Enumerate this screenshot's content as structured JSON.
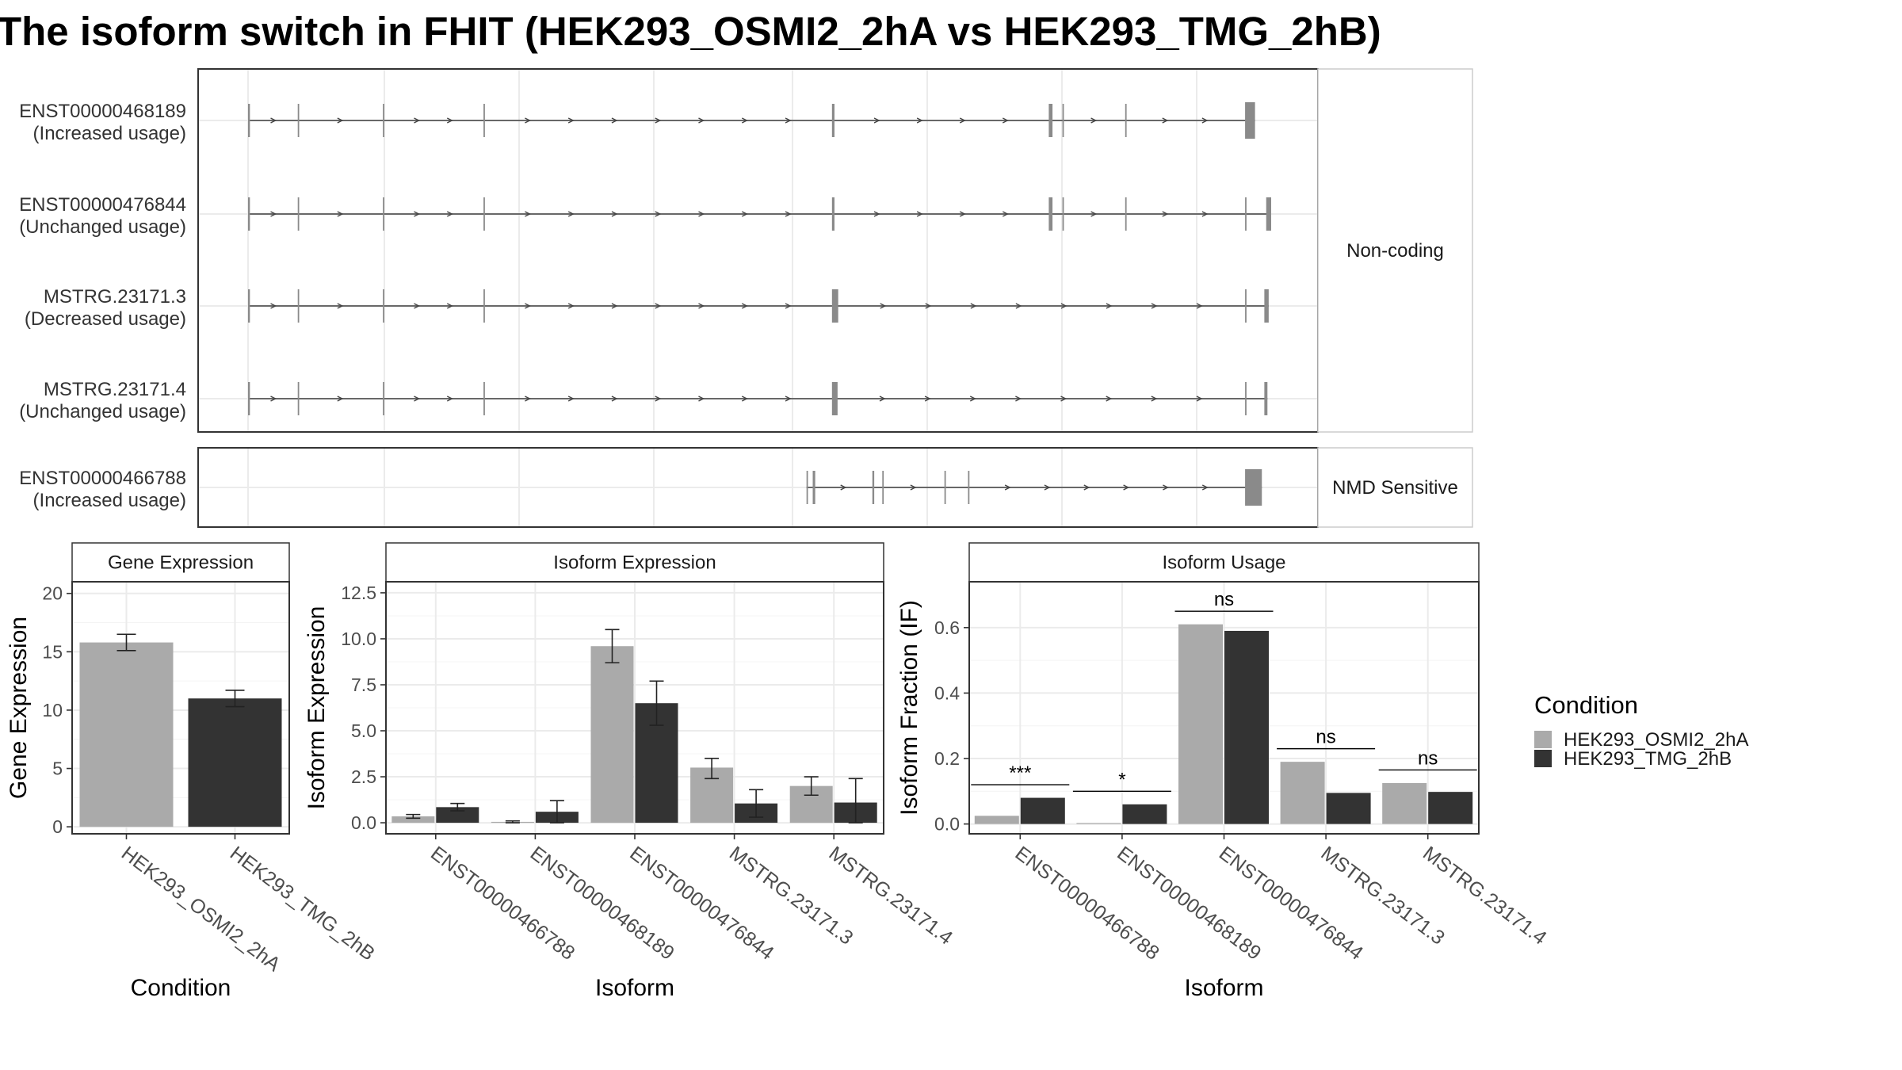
{
  "title": "The isoform switch in FHIT (HEK293_OSMI2_2hA vs HEK293_TMG_2hB)",
  "transcripts": [
    {
      "id": "ENST00000468189",
      "usage": "(Increased usage)",
      "group": "Non-coding",
      "exons": [
        [
          1001,
          1004
        ],
        [
          1081,
          1082
        ],
        [
          1218,
          1220
        ],
        [
          1380,
          1382
        ],
        [
          1941,
          1945
        ],
        [
          2290,
          2296
        ],
        [
          2312,
          2313
        ],
        [
          2413,
          2414
        ],
        [
          2606,
          2622
        ]
      ]
    },
    {
      "id": "ENST00000476844",
      "usage": "(Unchanged usage)",
      "group": "Non-coding",
      "exons": [
        [
          1001,
          1004
        ],
        [
          1081,
          1082
        ],
        [
          1218,
          1220
        ],
        [
          1380,
          1382
        ],
        [
          1941,
          1945
        ],
        [
          2290,
          2296
        ],
        [
          2312,
          2313
        ],
        [
          2413,
          2414
        ],
        [
          2606,
          2607
        ],
        [
          2640,
          2648
        ]
      ]
    },
    {
      "id": "MSTRG.23171.3",
      "usage": "(Decreased usage)",
      "group": "Non-coding",
      "exons": [
        [
          1001,
          1004
        ],
        [
          1081,
          1082
        ],
        [
          1218,
          1220
        ],
        [
          1380,
          1382
        ],
        [
          1941,
          1951
        ],
        [
          2606,
          2608
        ],
        [
          2637,
          2644
        ]
      ]
    },
    {
      "id": "MSTRG.23171.4",
      "usage": "(Unchanged usage)",
      "group": "Non-coding",
      "exons": [
        [
          1001,
          1004
        ],
        [
          1081,
          1082
        ],
        [
          1218,
          1220
        ],
        [
          1380,
          1382
        ],
        [
          1941,
          1950
        ],
        [
          2606,
          2608
        ],
        [
          2637,
          2642
        ]
      ]
    },
    {
      "id": "ENST00000466788",
      "usage": "(Increased usage)",
      "group": "NMD Sensitive",
      "exons": [
        [
          1900,
          1902
        ],
        [
          1910,
          1914
        ],
        [
          2006,
          2009
        ],
        [
          2022,
          2023
        ],
        [
          2122,
          2123
        ],
        [
          2160,
          2161
        ],
        [
          2606,
          2633
        ]
      ]
    }
  ],
  "groups": [
    "Non-coding",
    "NMD Sensitive"
  ],
  "chart_data": [
    {
      "type": "bar",
      "title": "Gene Expression",
      "xlabel": "Condition",
      "ylabel": "Gene Expression",
      "ylim": [
        -0.6,
        21
      ],
      "yticks": [
        0,
        5,
        10,
        15,
        20
      ],
      "ytick_labels": [
        "0",
        "5",
        "10",
        "15",
        "20"
      ],
      "categories": [
        "HEK293_OSMI2_2hA",
        "HEK293_TMG_2hB"
      ],
      "values": [
        15.8,
        11.0
      ],
      "errors": [
        [
          15.1,
          16.5
        ],
        [
          10.3,
          11.7
        ]
      ],
      "bar_colors": [
        "#aaaaaa",
        "#333333"
      ]
    },
    {
      "type": "bar",
      "title": "Isoform Expression",
      "xlabel": "Isoform",
      "ylabel": "Isoform Expression",
      "ylim": [
        -0.6,
        13.1
      ],
      "yticks": [
        0,
        2.5,
        5,
        7.5,
        10,
        12.5
      ],
      "ytick_labels": [
        "0.0",
        "2.5",
        "5.0",
        "7.5",
        "10.0",
        "12.5"
      ],
      "categories": [
        "ENST00000466788",
        "ENST00000468189",
        "ENST00000476844",
        "MSTRG.23171.3",
        "MSTRG.23171.4"
      ],
      "series": [
        {
          "name": "HEK293_OSMI2_2hA",
          "color": "#aaaaaa",
          "values": [
            0.35,
            0.05,
            9.6,
            3.0,
            2.0
          ],
          "errors": [
            [
              0.25,
              0.45
            ],
            [
              0.0,
              0.1
            ],
            [
              8.7,
              10.5
            ],
            [
              2.4,
              3.5
            ],
            [
              1.5,
              2.5
            ]
          ]
        },
        {
          "name": "HEK293_TMG_2hB",
          "color": "#333333",
          "values": [
            0.85,
            0.6,
            6.5,
            1.05,
            1.1
          ],
          "errors": [
            [
              0.65,
              1.05
            ],
            [
              0.0,
              1.2
            ],
            [
              5.3,
              7.7
            ],
            [
              0.3,
              1.8
            ],
            [
              0.0,
              2.4
            ]
          ]
        }
      ]
    },
    {
      "type": "bar",
      "title": "Isoform Usage",
      "xlabel": "Isoform",
      "ylabel": "Isoform Fraction (IF)",
      "ylim": [
        -0.03,
        0.74
      ],
      "yticks": [
        0,
        0.2,
        0.4,
        0.6
      ],
      "ytick_labels": [
        "0.0",
        "0.2",
        "0.4",
        "0.6"
      ],
      "categories": [
        "ENST00000466788",
        "ENST00000468189",
        "ENST00000476844",
        "MSTRG.23171.3",
        "MSTRG.23171.4"
      ],
      "series": [
        {
          "name": "HEK293_OSMI2_2hA",
          "color": "#aaaaaa",
          "values": [
            0.025,
            0.003,
            0.61,
            0.19,
            0.125
          ]
        },
        {
          "name": "HEK293_TMG_2hB",
          "color": "#333333",
          "values": [
            0.08,
            0.06,
            0.59,
            0.095,
            0.098
          ]
        }
      ],
      "significance": [
        "***",
        "*",
        "ns",
        "ns",
        "ns"
      ]
    }
  ],
  "legend": {
    "title": "Condition",
    "items": [
      {
        "label": "HEK293_OSMI2_2hA",
        "color": "#aaaaaa"
      },
      {
        "label": "HEK293_TMG_2hB",
        "color": "#333333"
      }
    ]
  }
}
